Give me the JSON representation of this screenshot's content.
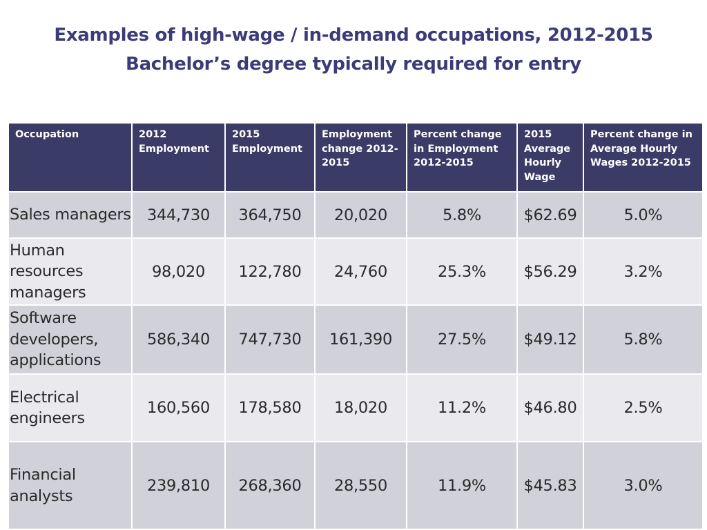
{
  "title": {
    "line1": "Examples of high-wage / in-demand occupations, 2012-2015",
    "line2": "Bachelor’s degree typically required for entry"
  },
  "table": {
    "columns": [
      "Occupation",
      "2012 Employment",
      "2015 Employment",
      "Employment change 2012-2015",
      "Percent change in Employment 2012-2015",
      "2015 Average Hourly Wage",
      "Percent change in Average Hourly Wages 2012-2015"
    ],
    "rows": [
      [
        "Sales managers",
        "344,730",
        "364,750",
        "20,020",
        "5.8%",
        "$62.69",
        "5.0%"
      ],
      [
        "Human resources managers",
        "98,020",
        "122,780",
        "24,760",
        "25.3%",
        "$56.29",
        "3.2%"
      ],
      [
        "Software developers, applications",
        "586,340",
        "747,730",
        "161,390",
        "27.5%",
        "$49.12",
        "5.8%"
      ],
      [
        "Electrical engineers",
        "160,560",
        "178,580",
        "18,020",
        "11.2%",
        "$46.80",
        "2.5%"
      ],
      [
        "Financial analysts",
        "239,810",
        "268,360",
        "28,550",
        "11.9%",
        "$45.83",
        "3.0%"
      ]
    ]
  },
  "colors": {
    "title": "#3b3b78",
    "header_bg": "#3b3b67",
    "row_dark": "#d1d1d9",
    "row_light": "#e9e9ee"
  }
}
